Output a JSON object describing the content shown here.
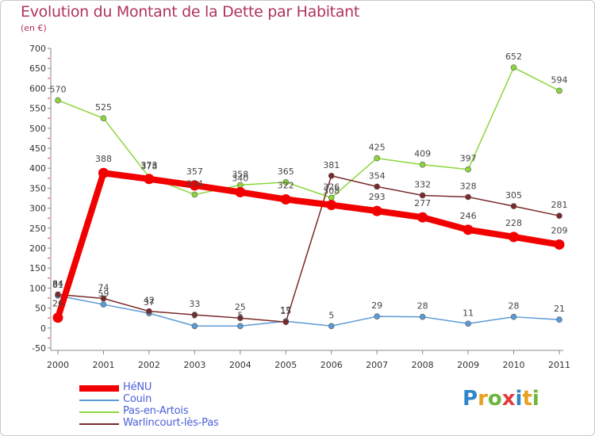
{
  "title": "Evolution du Montant de la Dette par Habitant",
  "subtitle": "(en €)",
  "logo": {
    "text": "Proxiti",
    "letters": [
      {
        "ch": "P",
        "color": "#2e86c8"
      },
      {
        "ch": "r",
        "color": "#e8a020"
      },
      {
        "ch": "o",
        "color": "#6cb63e"
      },
      {
        "ch": "x",
        "color": "#e03c3c"
      },
      {
        "ch": "i",
        "color": "#2e86c8"
      },
      {
        "ch": "t",
        "color": "#e8a020"
      },
      {
        "ch": "i",
        "color": "#6cb63e"
      }
    ]
  },
  "chart_data": {
    "type": "line",
    "title": "Evolution du Montant de la Dette par Habitant",
    "subtitle": "(en €)",
    "x": [
      "2000",
      "2001",
      "2002",
      "2003",
      "2004",
      "2005",
      "2006",
      "2007",
      "2008",
      "2009",
      "2010",
      "2011"
    ],
    "ylim": [
      -50,
      700
    ],
    "yticks": [
      -50,
      0,
      50,
      100,
      150,
      200,
      250,
      300,
      350,
      400,
      450,
      500,
      550,
      600,
      650,
      700
    ],
    "grid": false,
    "legend_position": "bottom-left",
    "series": [
      {
        "name": "HéNU",
        "color": "#f20000",
        "width": "thick",
        "values": [
          26,
          388,
          373,
          357,
          340,
          322,
          308,
          293,
          277,
          246,
          228,
          209
        ]
      },
      {
        "name": "Couin",
        "color": "#5b9bd5",
        "width": "thin",
        "values": [
          81,
          59,
          37,
          5,
          5,
          17,
          5,
          29,
          28,
          11,
          28,
          21
        ]
      },
      {
        "name": "Pas-en-Artois",
        "color": "#8cd63c",
        "width": "thin",
        "values": [
          570,
          525,
          378,
          334,
          358,
          365,
          326,
          425,
          409,
          397,
          652,
          594
        ]
      },
      {
        "name": "Warlincourt-lès-Pas",
        "color": "#7a2a2a",
        "width": "thin",
        "values": [
          84,
          74,
          42,
          33,
          25,
          15,
          381,
          354,
          332,
          328,
          305,
          281
        ]
      }
    ]
  }
}
